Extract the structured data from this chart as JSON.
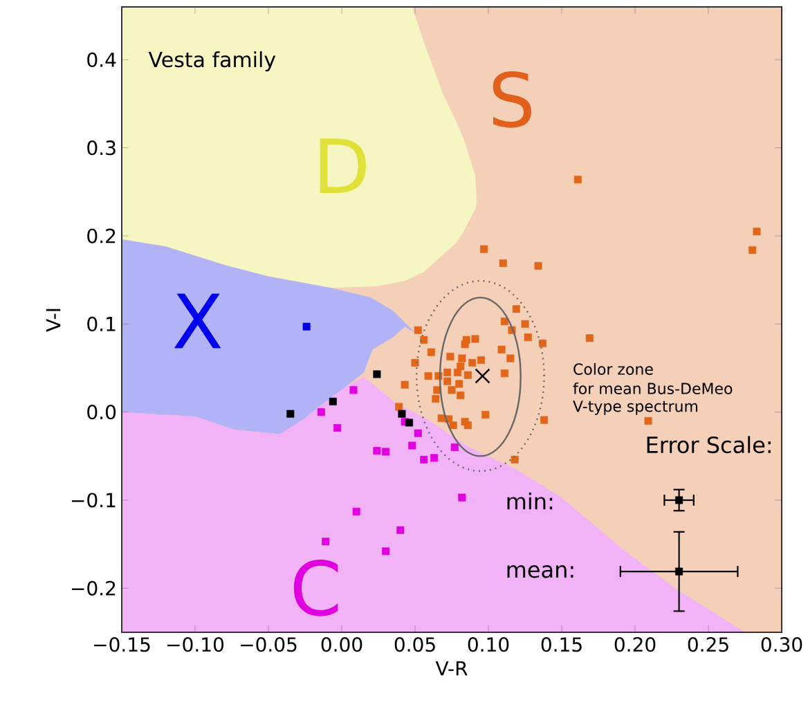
{
  "chart_data": {
    "type": "scatter",
    "title": "Vesta family",
    "xlabel": "V-R",
    "ylabel": "V-I",
    "xlim": [
      -0.15,
      0.3
    ],
    "ylim": [
      -0.25,
      0.46
    ],
    "xticks": [
      {
        "value": -0.15,
        "label": "−0.15"
      },
      {
        "value": -0.1,
        "label": "−0.10"
      },
      {
        "value": -0.05,
        "label": "−0.05"
      },
      {
        "value": 0.0,
        "label": "0.00"
      },
      {
        "value": 0.05,
        "label": "0.05"
      },
      {
        "value": 0.1,
        "label": "0.10"
      },
      {
        "value": 0.15,
        "label": "0.15"
      },
      {
        "value": 0.2,
        "label": "0.20"
      },
      {
        "value": 0.25,
        "label": "0.25"
      },
      {
        "value": 0.3,
        "label": "0.30"
      }
    ],
    "yticks": [
      {
        "value": -0.2,
        "label": "−0.2"
      },
      {
        "value": -0.1,
        "label": "−0.1"
      },
      {
        "value": 0.0,
        "label": "0.0"
      },
      0.1,
      0.2,
      0.3,
      0.4
    ],
    "grid": false,
    "series": [
      {
        "color": "#e2661a",
        "marker": "square",
        "x": [
          0.161,
          0.097,
          0.11,
          0.134,
          0.119,
          0.111,
          0.125,
          0.116,
          0.127,
          0.137,
          0.169,
          0.052,
          0.056,
          0.061,
          0.05,
          0.043,
          0.085,
          0.091,
          0.084,
          0.109,
          0.115,
          0.074,
          0.082,
          0.095,
          0.089,
          0.081,
          0.079,
          0.086,
          0.111,
          0.059,
          0.066,
          0.072,
          0.072,
          0.08,
          0.065,
          0.075,
          0.081,
          0.064,
          0.039,
          0.098,
          0.068,
          0.073,
          0.076,
          0.084,
          0.086,
          0.138,
          0.118,
          0.283,
          0.28,
          0.209
        ],
        "values": [
          0.264,
          0.185,
          0.169,
          0.166,
          0.117,
          0.103,
          0.1,
          0.093,
          0.085,
          0.078,
          0.084,
          0.093,
          0.082,
          0.068,
          0.056,
          0.031,
          0.082,
          0.083,
          0.077,
          0.071,
          0.061,
          0.063,
          0.061,
          0.059,
          0.056,
          0.052,
          0.045,
          0.042,
          0.044,
          0.041,
          0.041,
          0.045,
          0.035,
          0.032,
          0.025,
          0.025,
          0.019,
          0.015,
          0.006,
          -0.003,
          -0.007,
          -0.008,
          -0.015,
          -0.011,
          -0.015,
          -0.009,
          -0.054,
          0.205,
          0.184,
          -0.01
        ]
      },
      {
        "color": "#e000e0",
        "marker": "square",
        "x": [
          0.008,
          -0.014,
          -0.003,
          0.052,
          0.048,
          0.024,
          0.03,
          0.056,
          0.063,
          0.01,
          0.04,
          -0.011,
          0.03,
          0.043,
          0.077,
          0.082
        ],
        "values": [
          0.025,
          0.0,
          -0.018,
          -0.024,
          -0.038,
          -0.044,
          -0.045,
          -0.054,
          -0.052,
          -0.113,
          -0.134,
          -0.147,
          -0.158,
          -0.011,
          -0.04,
          -0.097
        ]
      },
      {
        "color": "#000000",
        "marker": "square",
        "x": [
          0.024,
          0.041,
          0.046,
          -0.006,
          -0.035
        ],
        "values": [
          0.043,
          -0.002,
          -0.012,
          0.012,
          -0.002
        ]
      },
      {
        "color": "#0000e0",
        "marker": "square",
        "x": [
          -0.024
        ],
        "values": [
          0.097
        ]
      },
      {
        "color": "#000000",
        "marker": "cross",
        "x": [
          0.096
        ],
        "values": [
          0.041
        ]
      },
      {
        "color": "#000000",
        "marker": "square",
        "x": [
          0.23,
          0.23
        ],
        "values": [
          -0.1,
          -0.181
        ],
        "errors": [
          0.012,
          0.045
        ],
        "xerrors": [
          0.01,
          0.04
        ]
      }
    ],
    "annotations": [
      "S",
      "D",
      "X",
      "C",
      "Color zone",
      "for mean Bus-DeMeo",
      "V-type spectrum",
      "Error Scale:",
      "min:",
      "mean:"
    ]
  }
}
